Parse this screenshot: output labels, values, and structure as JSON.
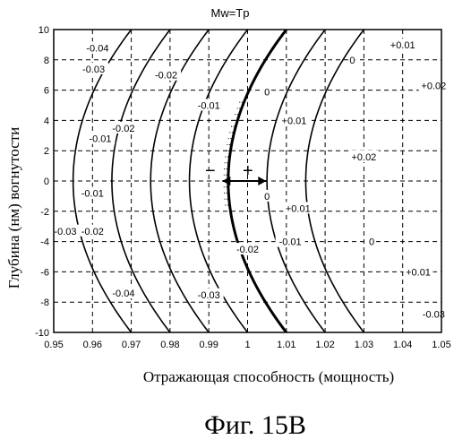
{
  "chart_data": {
    "type": "line",
    "title": "Mw=Tp",
    "xlabel": "Отражающая способность (мощность)",
    "ylabel": "Глубина (нм) вогнутости",
    "xlim": [
      0.95,
      1.05
    ],
    "ylim": [
      -10,
      10
    ],
    "x_ticks": [
      "0.95",
      "0.96",
      "0.97",
      "0.98",
      "0.99",
      "1",
      "1.01",
      "1.02",
      "1.03",
      "1.04",
      "1.05"
    ],
    "y_ticks": [
      "10",
      "8",
      "6",
      "4",
      "2",
      "0",
      "-2",
      "-4",
      "-6",
      "-8",
      "-10"
    ],
    "grid": true,
    "contour_model": "x = 0.995 + level + 0.00015 * y^2",
    "series": [
      {
        "level": -0.04,
        "label": "-0.04",
        "label_positions": [
          [
            0.9613,
            8.8
          ],
          [
            0.968,
            -7.4
          ]
        ]
      },
      {
        "level": -0.03,
        "label": "-0.03",
        "label_positions": [
          [
            0.9603,
            7.4
          ],
          [
            0.953,
            -3.3
          ],
          [
            0.99,
            -7.5
          ]
        ]
      },
      {
        "level": -0.02,
        "label": "-0.02",
        "label_positions": [
          [
            0.979,
            7.0
          ],
          [
            0.968,
            3.5
          ],
          [
            0.96,
            -3.3
          ],
          [
            1.0,
            -4.5
          ]
        ]
      },
      {
        "level": -0.01,
        "label": "-0.01",
        "label_positions": [
          [
            0.99,
            5.0
          ],
          [
            0.962,
            2.8
          ],
          [
            0.96,
            -0.8
          ],
          [
            1.011,
            -4.0
          ]
        ]
      },
      {
        "level": 0,
        "label": "0",
        "bold": true,
        "label_positions": [
          [
            1.027,
            8.0
          ],
          [
            1.005,
            5.9
          ],
          [
            1.005,
            -1.0
          ],
          [
            1.032,
            -4.0
          ]
        ]
      },
      {
        "level": 0.01,
        "label": "+0.01",
        "label_positions": [
          [
            1.04,
            9.0
          ],
          [
            1.012,
            4.0
          ],
          [
            1.013,
            -1.8
          ],
          [
            1.044,
            -6.0
          ]
        ]
      },
      {
        "level": 0.02,
        "label": "+0.02",
        "label_positions": [
          [
            1.048,
            6.3
          ],
          [
            1.03,
            1.6
          ]
        ]
      },
      {
        "level": -0.03,
        "label": "-0.03",
        "label_positions": [
          [
            1.048,
            -8.8
          ]
        ]
      }
    ],
    "annotations": {
      "minus": "−",
      "plus": "+",
      "arrow_at": {
        "x": 0.995,
        "y": 0,
        "span": [
          0.9935,
          1.0048
        ]
      }
    }
  },
  "figure_caption": "Фиг. 15В"
}
